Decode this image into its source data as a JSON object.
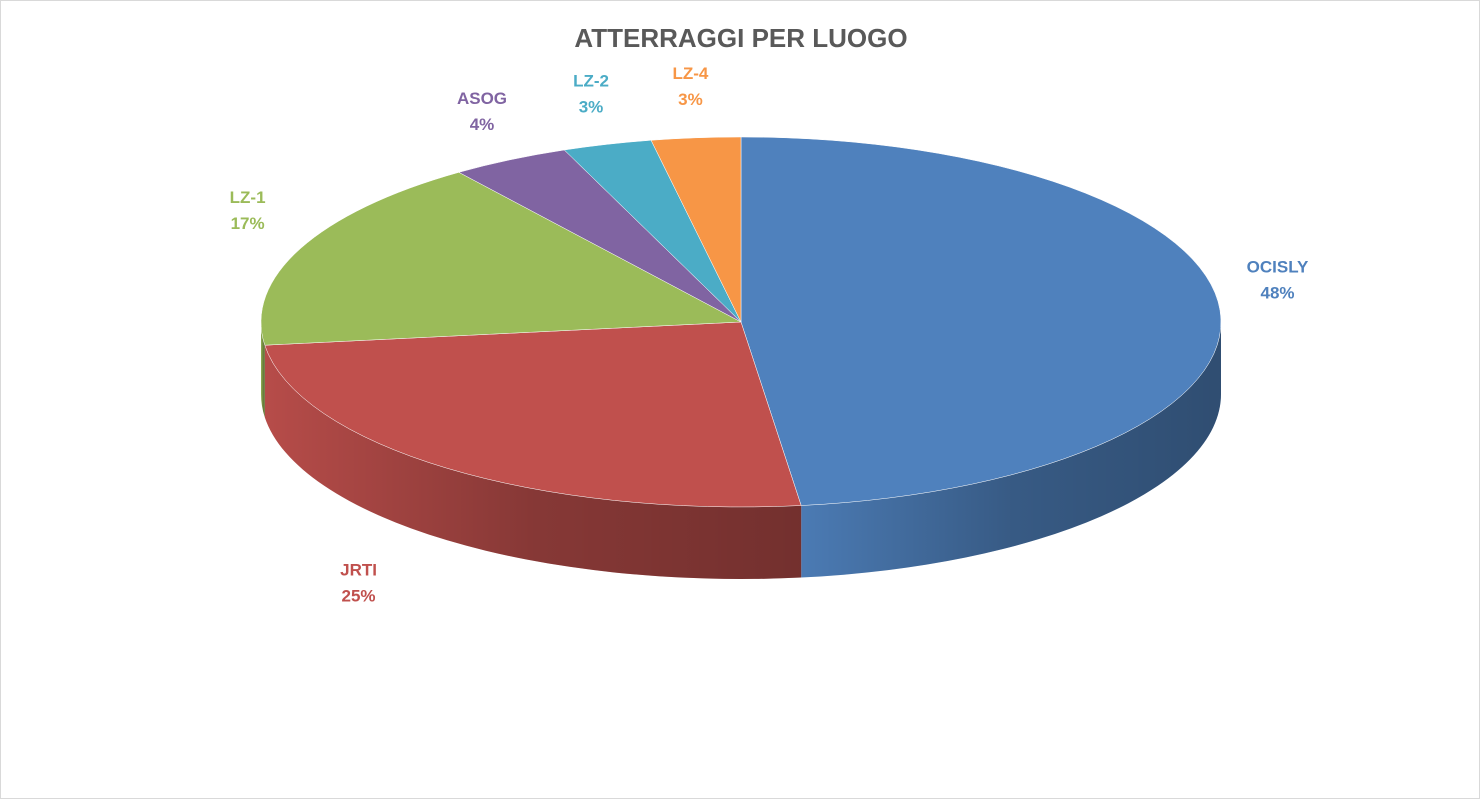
{
  "chart_data": {
    "type": "pie3d",
    "title": "ATTERRAGGI PER LUOGO",
    "categories": [
      "OCISLY",
      "JRTI",
      "LZ-1",
      "ASOG",
      "LZ-2",
      "LZ-4"
    ],
    "values": [
      48,
      25,
      17,
      4,
      3,
      3
    ],
    "value_labels": [
      "48%",
      "25%",
      "17%",
      "4%",
      "3%",
      "3%"
    ],
    "colors": [
      "#4f81bd",
      "#c0504d",
      "#9bbb59",
      "#8064a2",
      "#4bacc6",
      "#f79646"
    ]
  }
}
